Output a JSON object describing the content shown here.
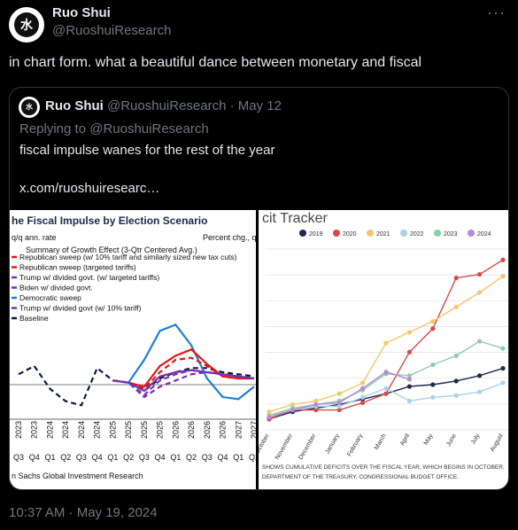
{
  "tweet": {
    "author_name": "Ruo Shui",
    "author_handle": "@RuoshuiResearch",
    "avatar_text": "水",
    "avatar_sub": "Ruoshui Research",
    "text": "in chart form. what a beautiful dance between monetary and fiscal",
    "timestamp": "10:37 AM · May 19, 2024"
  },
  "quoted": {
    "author_name": "Ruo Shui",
    "author_handle": "@RuoshuiResearch",
    "date": "· May 12",
    "reply_prefix": "Replying to ",
    "reply_mention": "@RuoshuiResearch",
    "text": "fiscal impulse wanes for the rest of the year",
    "link": "x.com/ruoshuiresearc…"
  },
  "chart_left": {
    "title": "he Fiscal Impulse by Election Scenario",
    "ylabel": "q/q ann. rate",
    "ylabel_right": "Percent chg., q",
    "subtitle": "Summary of Growth Effect (3-Qtr Centered Avg.)",
    "legend": [
      {
        "label": "Republican sweep (w/ 10% tariff and similarly sized new tax cuts)",
        "color": "#e01818",
        "style": "solid"
      },
      {
        "label": "Republican sweep (targeted tariffs)",
        "color": "#e01818",
        "style": "dash"
      },
      {
        "label": "Trump w/ divided govt. (w/ targeted tariffs)",
        "color": "#7a2fb0",
        "style": "dash"
      },
      {
        "label": "Biden w/ divided govt.",
        "color": "#7a2fb0",
        "style": "solid"
      },
      {
        "label": "Democratic sweep",
        "color": "#1f7fd6",
        "style": "solid"
      },
      {
        "label": "Trump w/ divided govt (w/ 10% tariff)",
        "color": "#7a2fb0",
        "style": "dash"
      },
      {
        "label": "Baseline",
        "color": "#0c1d3c",
        "style": "dash"
      }
    ],
    "years": [
      "2023",
      "2023",
      "2024",
      "2024",
      "2024",
      "2024",
      "2025",
      "2025",
      "2025",
      "2025",
      "2026",
      "2026",
      "2026",
      "2026",
      "2027",
      "2027"
    ],
    "quarters": [
      "Q3",
      "Q4",
      "Q1",
      "Q2",
      "Q3",
      "Q4",
      "Q1",
      "Q2",
      "Q3",
      "Q4",
      "Q1",
      "Q2",
      "Q3",
      "Q4",
      "Q1",
      "Q2"
    ],
    "source": "n Sachs Global Investment Research"
  },
  "chart_right": {
    "title": "cit Tracker",
    "legend": [
      {
        "label": "2019",
        "color": "#1d2b4a"
      },
      {
        "label": "2020",
        "color": "#d64a4a"
      },
      {
        "label": "2021",
        "color": "#f5c76a"
      },
      {
        "label": "2022",
        "color": "#a9d2ef"
      },
      {
        "label": "2023",
        "color": "#8fcea8"
      },
      {
        "label": "2024",
        "color": "#b48bd6"
      }
    ],
    "months": [
      "October",
      "November",
      "December",
      "January",
      "February",
      "March",
      "April",
      "May",
      "June",
      "July",
      "August"
    ],
    "note_line1": "SHOWS CUMULATIVE DEFICITS OVER THE FISCAL YEAR, WHICH BEGINS IN OCTOBER.",
    "note_line2": "DEPARTMENT OF THE TREASURY, CONGRESSIONAL BUDGET OFFICE."
  },
  "chart_data": [
    {
      "type": "line",
      "title": "he Fiscal Impulse by Election Scenario",
      "ylabel": "q/q ann. rate",
      "x": [
        "2023 Q3",
        "2023 Q4",
        "2024 Q1",
        "2024 Q2",
        "2024 Q3",
        "2024 Q4",
        "2025 Q1",
        "2025 Q2",
        "2025 Q3",
        "2025 Q4",
        "2026 Q1",
        "2026 Q2",
        "2026 Q3",
        "2026 Q4",
        "2027 Q1",
        "2027 Q2"
      ],
      "series": [
        {
          "name": "Baseline",
          "values": [
            0.5,
            0.9,
            -0.2,
            -0.8,
            -1.0,
            0.8,
            0.2,
            0.1,
            -0.3,
            0.3,
            0.6,
            0.8,
            0.8,
            0.6,
            0.5,
            0.4
          ]
        },
        {
          "name": "Democratic sweep",
          "values": [
            null,
            null,
            null,
            null,
            null,
            null,
            0.2,
            0.1,
            1.2,
            2.6,
            2.9,
            1.9,
            0.3,
            -0.6,
            -0.7,
            -0.1
          ]
        },
        {
          "name": "Republican sweep (w/ 10% tariff and similarly sized new tax cuts)",
          "values": [
            null,
            null,
            null,
            null,
            null,
            null,
            0.2,
            0.1,
            -0.1,
            0.9,
            1.4,
            1.7,
            1.0,
            0.4,
            0.3,
            0.3
          ]
        },
        {
          "name": "Republican sweep (targeted tariffs)",
          "values": [
            null,
            null,
            null,
            null,
            null,
            null,
            0.2,
            0.1,
            -0.2,
            0.6,
            1.2,
            1.3,
            0.9,
            0.4,
            0.3,
            0.3
          ]
        },
        {
          "name": "Trump w/ divided govt. (w/ targeted tariffs)",
          "values": [
            null,
            null,
            null,
            null,
            null,
            null,
            0.2,
            0.1,
            -0.5,
            0.2,
            0.5,
            0.7,
            0.6,
            0.5,
            0.4,
            0.3
          ]
        },
        {
          "name": "Biden w/ divided govt.",
          "values": [
            null,
            null,
            null,
            null,
            null,
            null,
            0.2,
            0.1,
            -0.3,
            0.4,
            0.6,
            0.7,
            0.6,
            0.5,
            0.4,
            0.3
          ]
        },
        {
          "name": "Trump w/ divided govt (w/ 10% tariff)",
          "values": [
            null,
            null,
            null,
            null,
            null,
            null,
            0.2,
            0.1,
            -0.6,
            -0.1,
            0.2,
            0.5,
            0.6,
            0.5,
            0.4,
            0.3
          ]
        }
      ]
    },
    {
      "type": "line",
      "title": "cit Tracker",
      "x": [
        "October",
        "November",
        "December",
        "January",
        "February",
        "March",
        "April",
        "May",
        "June",
        "July",
        "August"
      ],
      "series": [
        {
          "name": "2019",
          "values": [
            0.6,
            1.0,
            1.2,
            1.4,
            1.7,
            2.0,
            2.4,
            2.5,
            2.7,
            3.0,
            3.4
          ]
        },
        {
          "name": "2020",
          "values": [
            0.6,
            1.1,
            1.1,
            1.1,
            1.5,
            2.0,
            4.3,
            5.6,
            8.4,
            8.6,
            9.4
          ]
        },
        {
          "name": "2021",
          "values": [
            1.0,
            1.4,
            1.6,
            2.0,
            2.6,
            4.8,
            5.4,
            6.0,
            6.8,
            7.6,
            8.5
          ]
        },
        {
          "name": "2022",
          "values": [
            0.8,
            1.1,
            1.3,
            1.3,
            1.8,
            2.3,
            1.6,
            1.8,
            1.9,
            2.1,
            2.6
          ]
        },
        {
          "name": "2023",
          "values": [
            0.8,
            1.2,
            1.4,
            1.6,
            2.2,
            3.1,
            3.0,
            3.6,
            4.1,
            4.9,
            4.5
          ]
        },
        {
          "name": "2024",
          "values": [
            0.7,
            1.1,
            1.4,
            1.5,
            2.3,
            3.2,
            2.8,
            null,
            null,
            null,
            null
          ]
        }
      ]
    }
  ]
}
